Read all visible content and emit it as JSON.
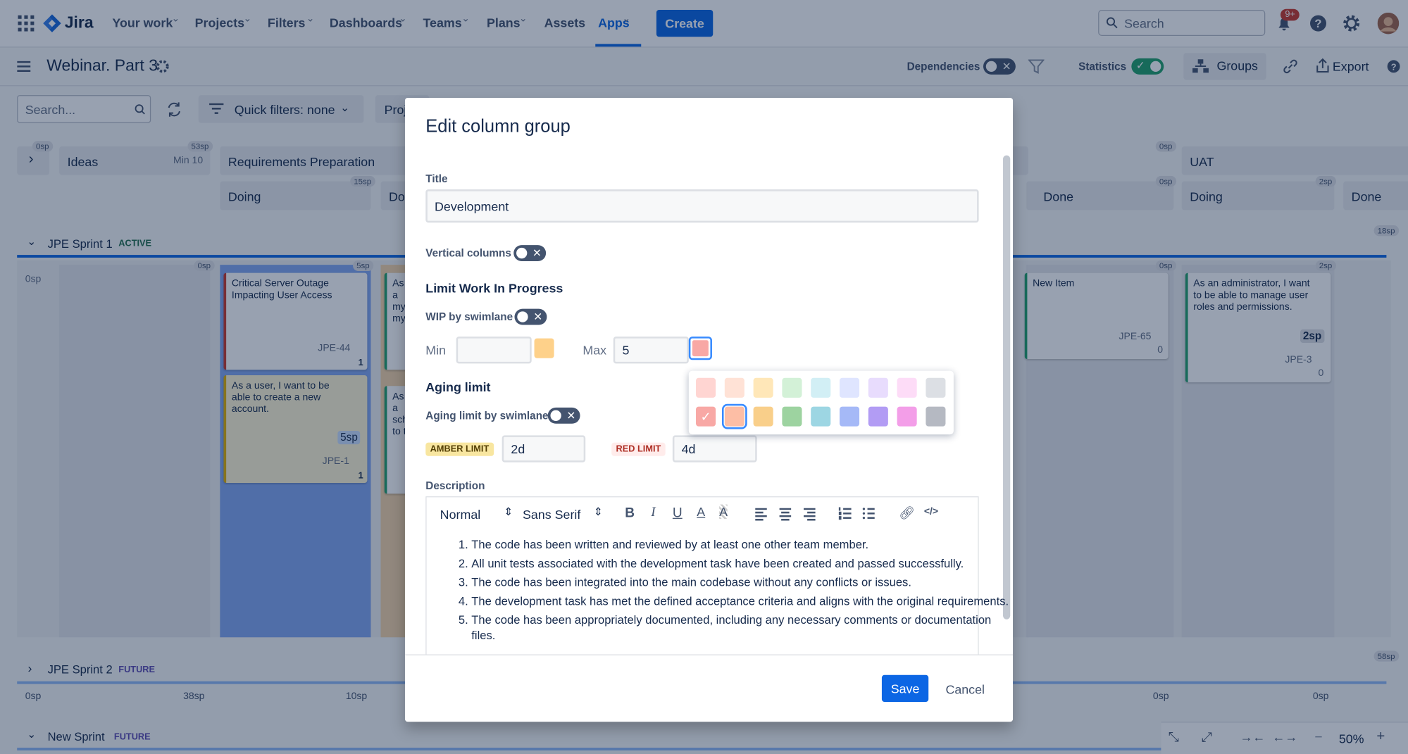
{
  "topnav": {
    "logo": "Jira",
    "items": [
      "Your work",
      "Projects",
      "Filters",
      "Dashboards",
      "Teams",
      "Plans",
      "Assets",
      "Apps"
    ],
    "create": "Create",
    "search": "Search",
    "notifications": "9+"
  },
  "board_header": {
    "title": "Webinar. Part 3",
    "dependencies": "Dependencies",
    "statistics": "Statistics",
    "groups": "Groups",
    "export": "Export"
  },
  "toolbar": {
    "search": "Search...",
    "quick_filters": "Quick filters: none",
    "project": "Proj"
  },
  "column_headers": {
    "ideas": "Ideas",
    "ideas_min": "Min 10",
    "ideas_sp": "53sp",
    "expand_sp": "0sp",
    "requirements": "Requirements Preparation",
    "doing": "Doing",
    "doing_sp": "15sp",
    "partial": "Do",
    "right_sp": "0sp",
    "uat": "UAT",
    "done": "Done",
    "done_sp": "0sp",
    "uat_doing": "Doing",
    "uat_doing_sp": "2sp",
    "uat_done": "Done"
  },
  "sprint1": {
    "name": "JPE Sprint 1",
    "state": "ACTIVE",
    "total": "18sp",
    "left_sp": "0sp",
    "col1_sp": "0sp",
    "col2_sp": "5sp",
    "col_r1_sp": "0sp",
    "col_r2_sp": "2sp"
  },
  "cards": [
    {
      "title": "Critical Server Outage Impacting User Access",
      "key": "JPE-44",
      "count": "1"
    },
    {
      "title": "As a user, I want to be able to create a new account.",
      "points": "5sp",
      "key": "JPE-1",
      "count": "1"
    },
    {
      "title": "As a my my"
    },
    {
      "title": "As a sch to t"
    },
    {
      "title": "New Item",
      "key": "JPE-65",
      "count": "0"
    },
    {
      "title": "As an administrator, I want to be able to manage user roles and permissions.",
      "points": "2sp",
      "key": "JPE-3",
      "count": "0"
    }
  ],
  "sprint2": {
    "name": "JPE Sprint 2",
    "state": "FUTURE",
    "total": "58sp",
    "row": [
      "0sp",
      "38sp",
      "10sp",
      "0sp",
      "0sp"
    ]
  },
  "sprint3": {
    "name": "New Sprint",
    "state": "FUTURE"
  },
  "zoom": "50%",
  "dialog": {
    "title": "Edit column group",
    "title_label": "Title",
    "title_value": "Development",
    "vertical_columns": "Vertical columns",
    "wip_heading": "Limit Work In Progress",
    "wip_by_swimlane": "WIP by swimlane",
    "min_label": "Min",
    "max_label": "Max",
    "max_value": "5",
    "aging_heading": "Aging limit",
    "aging_by_swimlane": "Aging limit by swimlane",
    "amber_label": "AMBER LIMIT",
    "amber_value": "2d",
    "red_label": "RED LIMIT",
    "red_value": "4d",
    "description_label": "Description",
    "editor_style": "Normal",
    "editor_font": "Sans Serif",
    "description": [
      "The code has been written and reviewed by at least one other team member.",
      "All unit tests associated with the development task have been created and passed successfully.",
      "The code has been integrated into the main codebase without any conflicts or issues.",
      "The development task has met the defined acceptance criteria and aligns with the original requirements.",
      "The code has been appropriately documented, including any necessary comments or documentation files."
    ],
    "save": "Save",
    "cancel": "Cancel",
    "palette": [
      "#ffd5d2",
      "#ffe2d6",
      "#ffe7b8",
      "#d3f1d7",
      "#d2eff5",
      "#dfe5ff",
      "#e8dcfd",
      "#fddcf7",
      "#dcdfe4",
      "#f8a8a5",
      "#fdbea5",
      "#f9cf8a",
      "#9dd3a0",
      "#9dd6e3",
      "#a5b9f7",
      "#b29cf4",
      "#f39ee8",
      "#b5b9c2"
    ],
    "palette_selected": 9
  }
}
